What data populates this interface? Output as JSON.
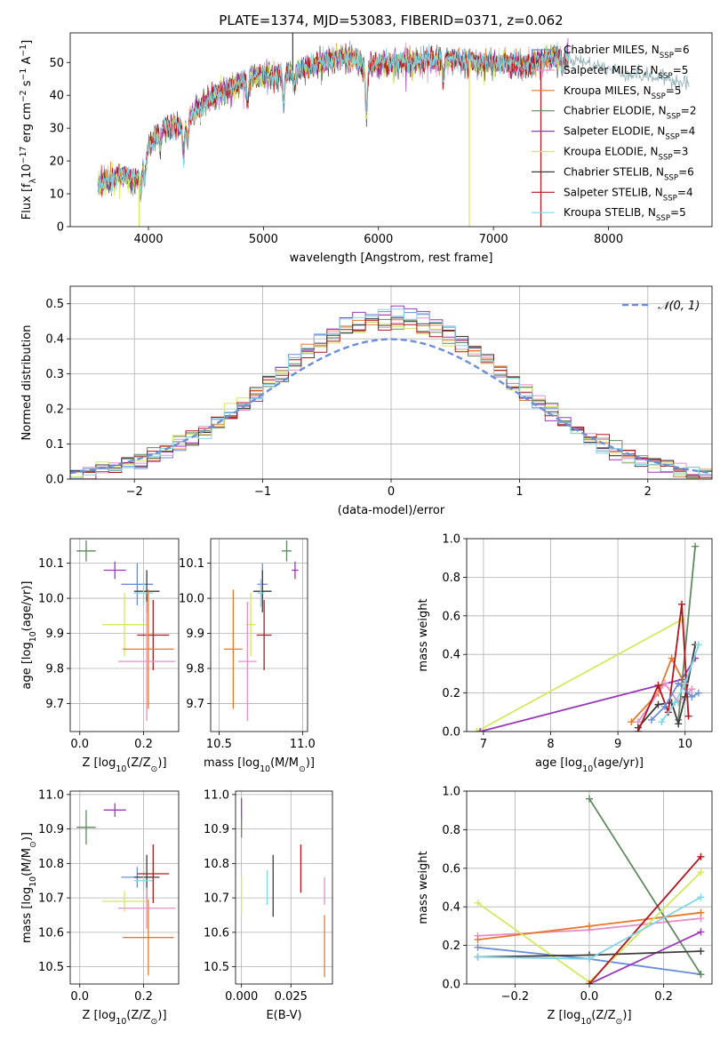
{
  "figure": {
    "title": "PLATE=1374, MJD=53083, FIBERID=0371, z=0.062"
  },
  "models": [
    {
      "name": "Chabrier MILES",
      "n": 6,
      "color": "#6a8fd8"
    },
    {
      "name": "Salpeter MILES",
      "n": 5,
      "color": "#e68fc8"
    },
    {
      "name": "Kroupa MILES",
      "n": 5,
      "color": "#e5782b"
    },
    {
      "name": "Chabrier ELODIE",
      "n": 2,
      "color": "#5f8a5f"
    },
    {
      "name": "Salpeter ELODIE",
      "n": 4,
      "color": "#9b38b8"
    },
    {
      "name": "Kroupa ELODIE",
      "n": 3,
      "color": "#d4e85c"
    },
    {
      "name": "Chabrier STELIB",
      "n": 6,
      "color": "#3c3c3c"
    },
    {
      "name": "Salpeter STELIB",
      "n": 4,
      "color": "#b5141d"
    },
    {
      "name": "Kroupa STELIB",
      "n": 5,
      "color": "#7fd6e6"
    }
  ],
  "chart_data": [
    {
      "id": "spectrum",
      "type": "line",
      "xlabel": "wavelength [Angstrom, rest frame]",
      "ylabel_parts": [
        "Flux [f",
        "λ",
        "10",
        "−17",
        " erg cm",
        "−2",
        " s",
        "−1",
        " A",
        "−1",
        "]"
      ],
      "xlim": [
        3320,
        8900
      ],
      "ylim": [
        0,
        59
      ],
      "xticks": [
        4000,
        5000,
        6000,
        7000,
        8000
      ],
      "yticks": [
        0,
        10,
        20,
        30,
        40,
        50
      ],
      "grid": false,
      "legend_position": "right",
      "continuum": {
        "x": [
          3560,
          3700,
          3800,
          3900,
          4000,
          4100,
          4300,
          4500,
          4700,
          4900,
          5100,
          5300,
          5500,
          5700,
          5900,
          6100,
          6300,
          6500,
          6700,
          6900,
          7100,
          7300,
          7500,
          7700,
          7900,
          8100,
          8300,
          8500,
          8700
        ],
        "y": [
          13,
          15,
          16,
          14,
          24,
          30,
          31,
          38,
          42,
          46,
          46,
          48,
          50,
          52,
          49,
          50,
          50,
          51,
          51,
          50,
          50,
          49,
          52,
          51,
          49,
          47,
          46,
          45,
          44
        ]
      },
      "absorption_lines": [
        {
          "x": 3934,
          "depth": 0.4
        },
        {
          "x": 3968,
          "depth": 0.35
        },
        {
          "x": 4102,
          "depth": 0.2
        },
        {
          "x": 4305,
          "depth": 0.3
        },
        {
          "x": 4341,
          "depth": 0.2
        },
        {
          "x": 4861,
          "depth": 0.15
        },
        {
          "x": 5175,
          "depth": 0.2
        },
        {
          "x": 5270,
          "depth": 0.1
        },
        {
          "x": 5895,
          "depth": 0.3
        },
        {
          "x": 6563,
          "depth": 0.12
        },
        {
          "x": 7600,
          "depth": 0.08
        }
      ],
      "spikes": [
        {
          "x": 3920,
          "y": 0,
          "color": "#d4e85c"
        },
        {
          "x": 5255,
          "y": 59,
          "color": "#3c3c3c"
        },
        {
          "x": 6790,
          "y": 0,
          "color": "#d4e85c"
        },
        {
          "x": 7412,
          "y": 0,
          "color": "#b5141d"
        }
      ]
    },
    {
      "id": "residuals",
      "type": "histogram",
      "xlabel": "(data-model)/error",
      "ylabel": "Normed distribution",
      "xlim": [
        -2.5,
        2.5
      ],
      "ylim": [
        0,
        0.55
      ],
      "xticks": [
        -2,
        -1,
        0,
        1,
        2
      ],
      "yticks": [
        0.0,
        0.1,
        0.2,
        0.3,
        0.4,
        0.5
      ],
      "grid": true,
      "bin_width": 0.1,
      "reference": {
        "label": "𝒩(0, 1)",
        "mean": 0,
        "sigma": 1,
        "color": "#6a8fd8",
        "style": "dashed"
      },
      "legend_position": "top-right"
    },
    {
      "id": "age-vs-Z",
      "type": "errorbar",
      "xlabel_parts": [
        "Z [log",
        "10",
        "(Z/Z",
        "⊙",
        ")]"
      ],
      "ylabel_parts": [
        "age  [log",
        "10",
        "(age/yr)]"
      ],
      "xlim": [
        -0.03,
        0.31
      ],
      "ylim": [
        9.62,
        10.17
      ],
      "xticks": [
        0.0,
        0.2
      ],
      "yticks": [
        9.7,
        9.8,
        9.9,
        10.0,
        10.1
      ],
      "grid": true,
      "points": [
        {
          "model": 3,
          "x": 0.02,
          "y": 10.135,
          "xerr": 0.03,
          "yerr": 0.03
        },
        {
          "model": 4,
          "x": 0.11,
          "y": 10.08,
          "xerr": 0.035,
          "yerr": 0.025
        },
        {
          "model": 0,
          "x": 0.18,
          "y": 10.04,
          "xerr": 0.05,
          "yerr": 0.06
        },
        {
          "model": 6,
          "x": 0.21,
          "y": 10.02,
          "xerr": 0.04,
          "yerr": 0.06
        },
        {
          "model": 8,
          "x": 0.2,
          "y": 10.015,
          "xerr": 0.03,
          "yerr": 0.04
        },
        {
          "model": 5,
          "x": 0.14,
          "y": 9.925,
          "xerr": 0.07,
          "yerr": 0.09
        },
        {
          "model": 7,
          "x": 0.23,
          "y": 9.895,
          "xerr": 0.05,
          "yerr": 0.1
        },
        {
          "model": 2,
          "x": 0.215,
          "y": 9.855,
          "xerr": 0.08,
          "yerr": 0.17
        },
        {
          "model": 1,
          "x": 0.21,
          "y": 9.82,
          "xerr": 0.09,
          "yerr": 0.17
        }
      ]
    },
    {
      "id": "age-vs-mass",
      "type": "errorbar",
      "xlabel_parts": [
        "mass [log",
        "10",
        "(M/M",
        "⊙",
        ")]"
      ],
      "ylabel": "",
      "xlim": [
        10.45,
        11.03
      ],
      "ylim": [
        9.62,
        10.17
      ],
      "xticks": [
        10.5,
        11.0
      ],
      "yticks": [
        9.7,
        9.8,
        9.9,
        10.0,
        10.1
      ],
      "grid": true,
      "points": [
        {
          "model": 3,
          "x": 10.905,
          "y": 10.135,
          "xerr": 0.03,
          "yerr": 0.03
        },
        {
          "model": 4,
          "x": 10.955,
          "y": 10.08,
          "xerr": 0.02,
          "yerr": 0.025
        },
        {
          "model": 0,
          "x": 10.76,
          "y": 10.04,
          "xerr": 0.03,
          "yerr": 0.06
        },
        {
          "model": 6,
          "x": 10.76,
          "y": 10.02,
          "xerr": 0.055,
          "yerr": 0.06
        },
        {
          "model": 8,
          "x": 10.75,
          "y": 10.015,
          "xerr": 0.02,
          "yerr": 0.04
        },
        {
          "model": 5,
          "x": 10.69,
          "y": 9.925,
          "xerr": 0.03,
          "yerr": 0.09
        },
        {
          "model": 7,
          "x": 10.77,
          "y": 9.895,
          "xerr": 0.045,
          "yerr": 0.1
        },
        {
          "model": 2,
          "x": 10.585,
          "y": 9.855,
          "xerr": 0.055,
          "yerr": 0.17
        },
        {
          "model": 1,
          "x": 10.67,
          "y": 9.82,
          "xerr": 0.055,
          "yerr": 0.17
        }
      ]
    },
    {
      "id": "weight-vs-age",
      "type": "line",
      "xlabel_parts": [
        "age  [log",
        "10",
        "(age/yr)]"
      ],
      "ylabel": "mass weight",
      "xlim": [
        6.75,
        10.4
      ],
      "ylim": [
        0,
        1.0
      ],
      "xticks": [
        7,
        8,
        9,
        10
      ],
      "yticks": [
        0.0,
        0.2,
        0.4,
        0.6,
        0.8,
        1.0
      ],
      "grid": true,
      "series": [
        {
          "model": 5,
          "x": [
            6.9,
            9.95
          ],
          "y": [
            0.0,
            0.58
          ]
        },
        {
          "model": 4,
          "x": [
            6.95,
            9.95,
            10.15
          ],
          "y": [
            0.0,
            0.27,
            0.38
          ]
        },
        {
          "model": 2,
          "x": [
            9.2,
            9.6,
            9.8,
            10.0
          ],
          "y": [
            0.05,
            0.2,
            0.38,
            0.24
          ]
        },
        {
          "model": 1,
          "x": [
            9.3,
            9.7,
            9.9,
            10.1
          ],
          "y": [
            0.05,
            0.25,
            0.15,
            0.22
          ]
        },
        {
          "model": 3,
          "x": [
            9.9,
            10.15
          ],
          "y": [
            0.06,
            0.96
          ]
        },
        {
          "model": 6,
          "x": [
            9.3,
            9.6,
            9.8,
            9.9,
            10.0,
            10.15
          ],
          "y": [
            0.02,
            0.14,
            0.15,
            0.04,
            0.18,
            0.45
          ]
        },
        {
          "model": 7,
          "x": [
            9.3,
            9.6,
            9.75,
            9.95,
            10.05
          ],
          "y": [
            0.0,
            0.24,
            0.1,
            0.66,
            0.08
          ]
        },
        {
          "model": 0,
          "x": [
            9.5,
            9.7,
            9.9,
            10.1,
            10.2
          ],
          "y": [
            0.06,
            0.13,
            0.25,
            0.18,
            0.2
          ]
        },
        {
          "model": 8,
          "x": [
            9.65,
            9.85,
            10.0,
            10.2
          ],
          "y": [
            0.05,
            0.15,
            0.25,
            0.45
          ]
        }
      ]
    },
    {
      "id": "mass-vs-Z",
      "type": "errorbar",
      "xlabel_parts": [
        "Z [log",
        "10",
        "(Z/Z",
        "⊙",
        ")]"
      ],
      "ylabel_parts": [
        "mass [log",
        "10",
        "(M/M",
        "⊙",
        ")]"
      ],
      "xlim": [
        -0.03,
        0.31
      ],
      "ylim": [
        10.45,
        11.01
      ],
      "xticks": [
        0.0,
        0.2
      ],
      "yticks": [
        10.5,
        10.6,
        10.7,
        10.8,
        10.9,
        11.0
      ],
      "grid": true,
      "points": [
        {
          "model": 3,
          "x": 0.02,
          "y": 10.905,
          "xerr": 0.03,
          "yerr": 0.05
        },
        {
          "model": 4,
          "x": 0.11,
          "y": 10.955,
          "xerr": 0.035,
          "yerr": 0.02
        },
        {
          "model": 0,
          "x": 0.18,
          "y": 10.76,
          "xerr": 0.05,
          "yerr": 0.03
        },
        {
          "model": 6,
          "x": 0.21,
          "y": 10.76,
          "xerr": 0.04,
          "yerr": 0.065
        },
        {
          "model": 8,
          "x": 0.2,
          "y": 10.75,
          "xerr": 0.03,
          "yerr": 0.03
        },
        {
          "model": 5,
          "x": 0.14,
          "y": 10.69,
          "xerr": 0.07,
          "yerr": 0.03
        },
        {
          "model": 7,
          "x": 0.23,
          "y": 10.77,
          "xerr": 0.05,
          "yerr": 0.085
        },
        {
          "model": 2,
          "x": 0.215,
          "y": 10.585,
          "xerr": 0.08,
          "yerr": 0.11
        },
        {
          "model": 1,
          "x": 0.21,
          "y": 10.67,
          "xerr": 0.09,
          "yerr": 0.06
        }
      ]
    },
    {
      "id": "mass-vs-ebv",
      "type": "errorbar",
      "xlabel": "E(B-V)",
      "ylabel": "",
      "xlim": [
        -0.003,
        0.046
      ],
      "ylim": [
        10.45,
        11.01
      ],
      "xticks": [
        0.0,
        0.025
      ],
      "xtick_labels": [
        "0.000",
        "0.025"
      ],
      "yticks": [
        10.5,
        10.6,
        10.7,
        10.8,
        10.9,
        11.0
      ],
      "grid": true,
      "points": [
        {
          "model": 4,
          "x": 0.0,
          "y": 10.955,
          "xerr": 0,
          "yerr": 0.035
        },
        {
          "model": 3,
          "x": 0.0,
          "y": 10.905,
          "xerr": 0,
          "yerr": 0.03
        },
        {
          "model": 5,
          "x": 0.0,
          "y": 10.71,
          "xerr": 0,
          "yerr": 0.055
        },
        {
          "model": 8,
          "x": 0.013,
          "y": 10.73,
          "xerr": 0,
          "yerr": 0.05
        },
        {
          "model": 6,
          "x": 0.016,
          "y": 10.735,
          "xerr": 0,
          "yerr": 0.09
        },
        {
          "model": 7,
          "x": 0.03,
          "y": 10.785,
          "xerr": 0,
          "yerr": 0.07
        },
        {
          "model": 1,
          "x": 0.042,
          "y": 10.72,
          "xerr": 0,
          "yerr": 0.04
        },
        {
          "model": 2,
          "x": 0.042,
          "y": 10.56,
          "xerr": 0,
          "yerr": 0.09
        }
      ]
    },
    {
      "id": "weight-vs-Z",
      "type": "line",
      "xlabel_parts": [
        "Z [log",
        "10",
        "(Z/Z",
        "⊙",
        ")]"
      ],
      "ylabel": "mass weight",
      "xlim": [
        -0.33,
        0.33
      ],
      "ylim": [
        0,
        1.0
      ],
      "xticks": [
        -0.2,
        0.0,
        0.2
      ],
      "yticks": [
        0.0,
        0.2,
        0.4,
        0.6,
        0.8,
        1.0
      ],
      "grid": true,
      "series": [
        {
          "model": 0,
          "x": [
            -0.3,
            0.0,
            0.3
          ],
          "y": [
            0.19,
            0.13,
            0.05
          ]
        },
        {
          "model": 1,
          "x": [
            -0.3,
            0.0,
            0.3
          ],
          "y": [
            0.25,
            0.28,
            0.34
          ]
        },
        {
          "model": 2,
          "x": [
            -0.3,
            0.0,
            0.3
          ],
          "y": [
            0.23,
            0.3,
            0.37
          ]
        },
        {
          "model": 3,
          "x": [
            0.0,
            0.3
          ],
          "y": [
            0.96,
            0.05
          ]
        },
        {
          "model": 4,
          "x": [
            0.0,
            0.3
          ],
          "y": [
            0.0,
            0.27
          ]
        },
        {
          "model": 5,
          "x": [
            -0.3,
            0.0,
            0.3
          ],
          "y": [
            0.42,
            0.01,
            0.58
          ]
        },
        {
          "model": 6,
          "x": [
            -0.3,
            0.0,
            0.3
          ],
          "y": [
            0.14,
            0.15,
            0.17
          ]
        },
        {
          "model": 7,
          "x": [
            0.0,
            0.3
          ],
          "y": [
            0.0,
            0.66
          ]
        },
        {
          "model": 8,
          "x": [
            -0.3,
            0.0,
            0.3
          ],
          "y": [
            0.14,
            0.13,
            0.45
          ]
        }
      ]
    }
  ]
}
